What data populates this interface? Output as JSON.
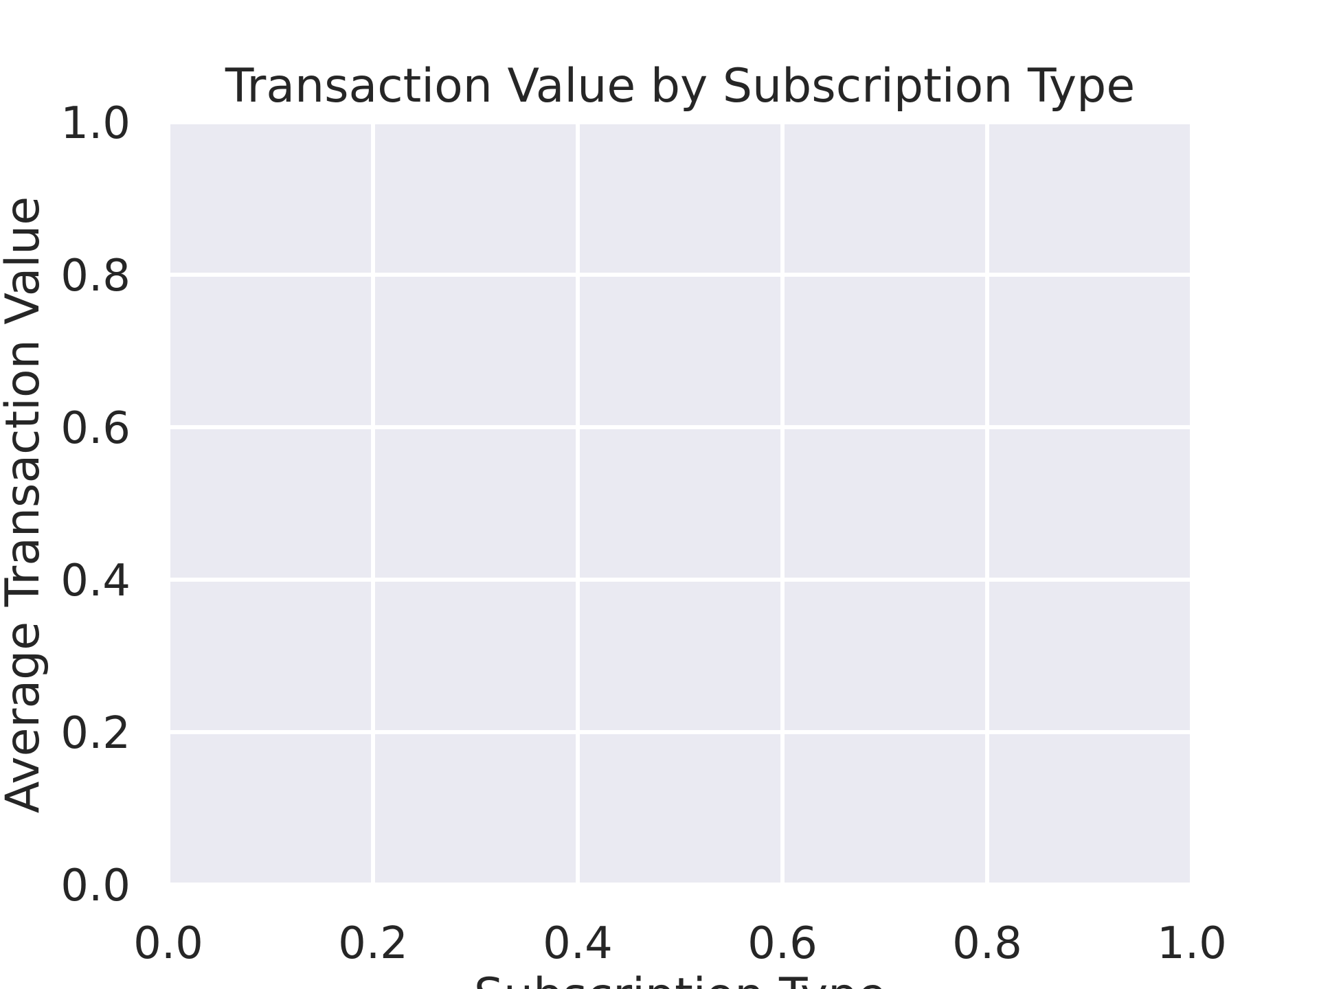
{
  "chart_data": {
    "type": "bar",
    "title": "Transaction Value by Subscription Type",
    "xlabel": "Subscription Type",
    "ylabel": "Average Transaction Value",
    "xlim": [
      0.0,
      1.0
    ],
    "ylim": [
      0.0,
      1.0
    ],
    "xticks": [
      "0.0",
      "0.2",
      "0.4",
      "0.6",
      "0.8",
      "1.0"
    ],
    "yticks": [
      "0.0",
      "0.2",
      "0.4",
      "0.6",
      "0.8",
      "1.0"
    ],
    "categories": [],
    "values": [],
    "grid": true,
    "legend": "none",
    "colors": {
      "plot_background": "#EAEAF2",
      "grid": "#FFFFFF",
      "text": "#262626"
    }
  }
}
